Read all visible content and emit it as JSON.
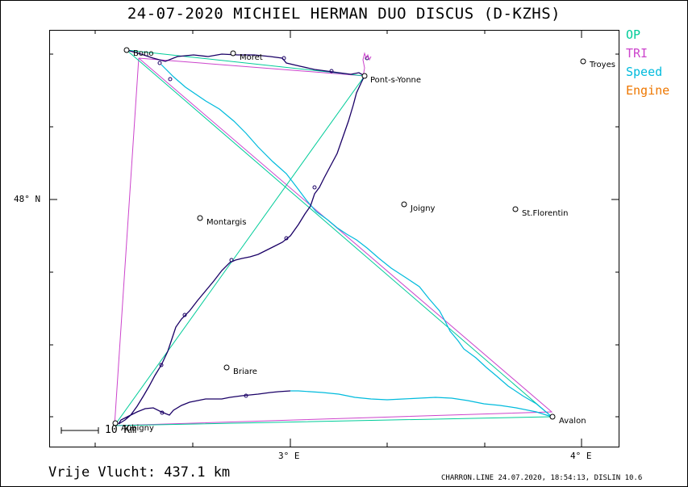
{
  "title": "24-07-2020   MICHIEL HERMAN   DUO DISCUS (D-KZHS)",
  "legend": [
    {
      "label": "OP",
      "color": "#00cc99"
    },
    {
      "label": "TRI",
      "color": "#cc44cc"
    },
    {
      "label": "Speed",
      "color": "#00bbdd"
    },
    {
      "label": "Engine",
      "color": "#ee7700"
    }
  ],
  "axes": {
    "lat_label": "48° N",
    "lon_labels": [
      "3° E",
      "4° E"
    ]
  },
  "scale_label": "10 Km",
  "towns": [
    {
      "name": "Bono"
    },
    {
      "name": "Moret"
    },
    {
      "name": "Pont-s-Yonne"
    },
    {
      "name": "Troyes"
    },
    {
      "name": "Montargis"
    },
    {
      "name": "Joigny"
    },
    {
      "name": "St.Florentin"
    },
    {
      "name": "Briare"
    },
    {
      "name": "Avalon"
    },
    {
      "name": "Aubigny"
    }
  ],
  "colors": {
    "track_climb": "#1a0066",
    "track_speed": "#00bbdd",
    "op": "#00cc99",
    "tri": "#cc44cc"
  },
  "footer": {
    "distance": "Vrije Vlucht:  437.1 km",
    "credit": "CHARRON.LINE 24.07.2020, 18:54:13, DISLIN 10.6"
  }
}
